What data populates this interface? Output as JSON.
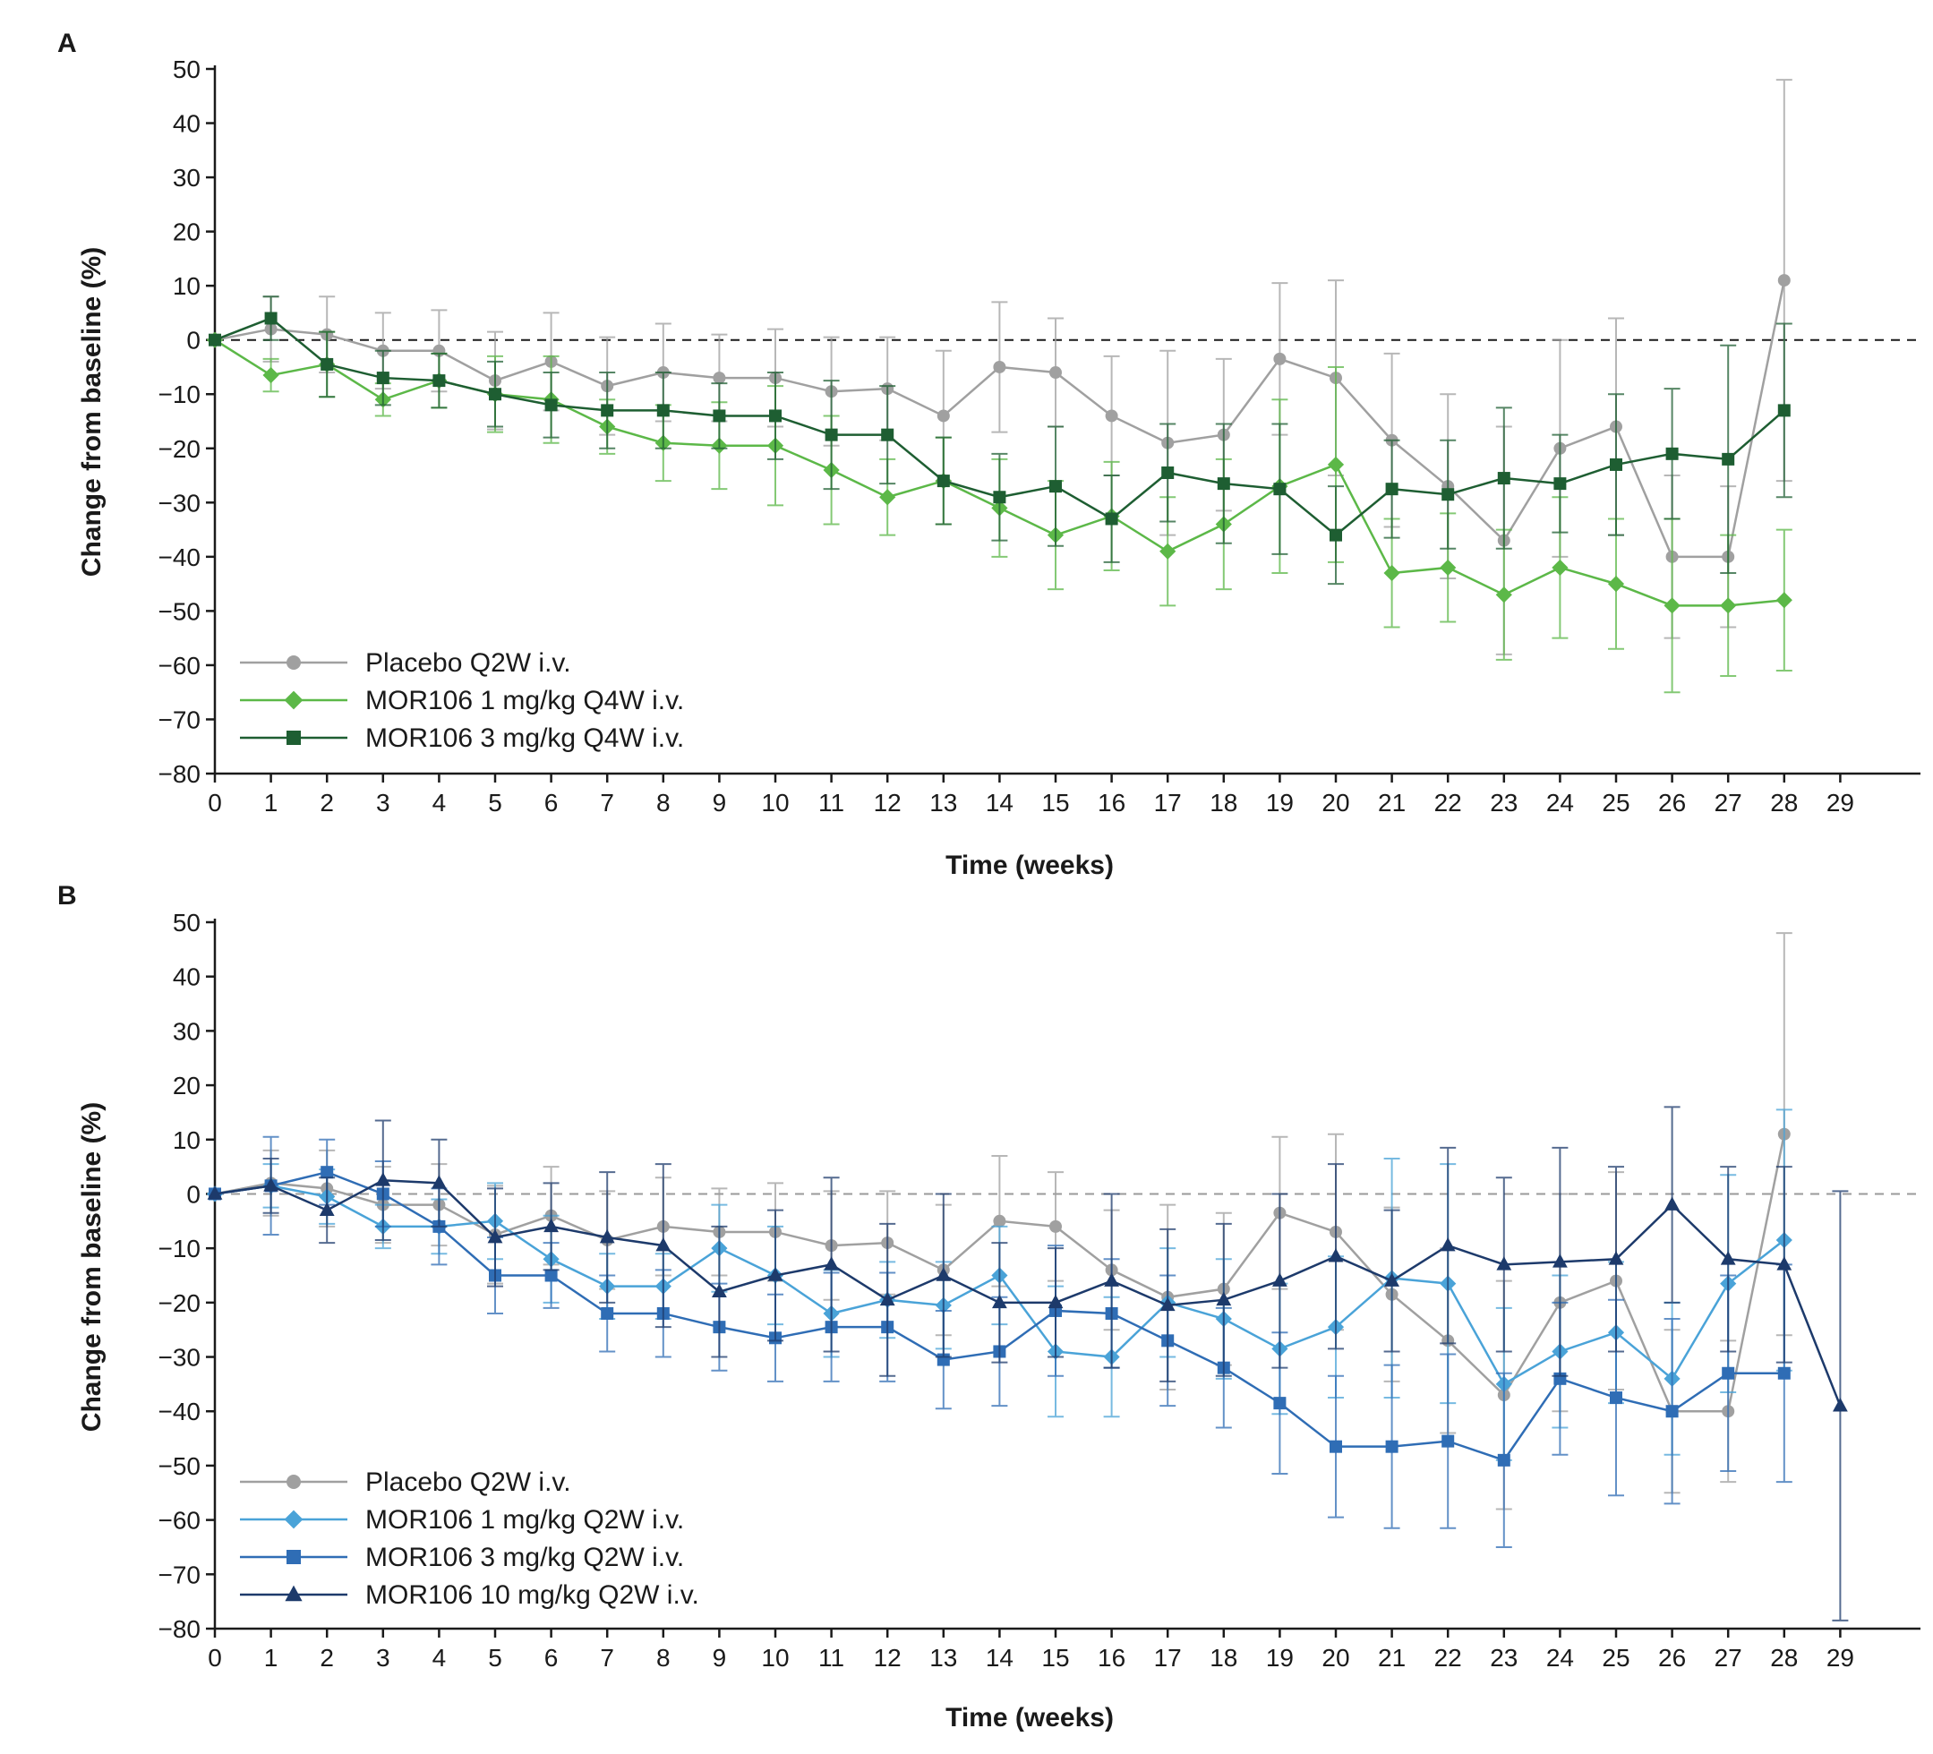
{
  "chart_data": [
    {
      "panel": "A",
      "type": "line",
      "xlabel": "Time (weeks)",
      "ylabel": "Change from baseline (%)",
      "xlim": [
        0,
        29
      ],
      "ylim": [
        -80,
        50
      ],
      "xticks": [
        "0",
        "1",
        "2",
        "3",
        "4",
        "5",
        "6",
        "7",
        "8",
        "9",
        "10",
        "11",
        "12",
        "13",
        "14",
        "15",
        "16",
        "17",
        "18",
        "19",
        "20",
        "21",
        "22",
        "23",
        "24",
        "25",
        "26",
        "27",
        "28",
        "29"
      ],
      "yticks": [
        "50",
        "40",
        "30",
        "20",
        "10",
        "0",
        "−10",
        "−20",
        "−30",
        "−40",
        "−50",
        "−60",
        "−70",
        "−80"
      ],
      "reference_line_y": 0,
      "legend_position": "bottom-left",
      "series": [
        {
          "name": "Placebo Q2W i.v.",
          "color": "#a0a0a0",
          "marker": "circle",
          "x": [
            0,
            1,
            2,
            3,
            4,
            5,
            6,
            7,
            8,
            9,
            10,
            11,
            12,
            13,
            14,
            15,
            16,
            17,
            18,
            19,
            20,
            21,
            22,
            23,
            24,
            25,
            26,
            27,
            28
          ],
          "y": [
            0,
            2,
            1,
            -2,
            -2,
            -7.5,
            -4,
            -8.5,
            -6,
            -7,
            -7,
            -9.5,
            -9,
            -14,
            -5,
            -6,
            -14,
            -19,
            -17.5,
            -3.5,
            -7,
            -18.5,
            -27,
            -37,
            -20,
            -16,
            -40,
            -40,
            11
          ],
          "err": [
            0,
            6,
            7,
            7,
            7.5,
            9,
            9,
            9,
            9,
            8,
            9,
            10,
            9.5,
            12,
            12,
            10,
            11,
            17,
            14,
            14,
            18,
            16,
            17,
            21,
            20,
            20,
            15,
            13,
            37
          ]
        },
        {
          "name": "MOR106 1 mg/kg Q4W i.v.",
          "color": "#5cb848",
          "marker": "diamond",
          "x": [
            0,
            1,
            2,
            3,
            4,
            5,
            6,
            7,
            8,
            9,
            10,
            11,
            12,
            13,
            14,
            15,
            16,
            17,
            18,
            19,
            20,
            21,
            22,
            23,
            24,
            25,
            26,
            27,
            28
          ],
          "y": [
            0,
            -6.5,
            -4.5,
            -11,
            -7.5,
            -10,
            -11,
            -16,
            -19,
            -19.5,
            -19.5,
            -24,
            -29,
            -26,
            -31,
            -36,
            -32.5,
            -39,
            -34,
            -27,
            -23,
            -43,
            -42,
            -47,
            -42,
            -45,
            -49,
            -49,
            -48
          ],
          "err": [
            0,
            3,
            6,
            3,
            5,
            7,
            8,
            5,
            7,
            8,
            11,
            10,
            7,
            8,
            9,
            10,
            10,
            10,
            12,
            16,
            18,
            10,
            10,
            12,
            13,
            12,
            16,
            13,
            13
          ]
        },
        {
          "name": "MOR106 3 mg/kg Q4W i.v.",
          "color": "#1e5e32",
          "marker": "square",
          "x": [
            0,
            1,
            2,
            3,
            4,
            5,
            6,
            7,
            8,
            9,
            10,
            11,
            12,
            13,
            14,
            15,
            16,
            17,
            18,
            19,
            20,
            21,
            22,
            23,
            24,
            25,
            26,
            27,
            28
          ],
          "y": [
            0,
            4,
            -4.5,
            -7,
            -7.5,
            -10,
            -12,
            -13,
            -13,
            -14,
            -14,
            -17.5,
            -17.5,
            -26,
            -29,
            -27,
            -33,
            -24.5,
            -26.5,
            -27.5,
            -36,
            -27.5,
            -28.5,
            -25.5,
            -26.5,
            -23,
            -21,
            -22,
            -13
          ],
          "err": [
            0,
            4,
            6,
            5,
            5,
            6,
            6,
            7,
            7,
            6,
            8,
            10,
            9,
            8,
            8,
            11,
            8,
            9,
            11,
            12,
            9,
            9,
            10,
            13,
            9,
            13,
            12,
            21,
            16
          ]
        }
      ]
    },
    {
      "panel": "B",
      "type": "line",
      "xlabel": "Time (weeks)",
      "ylabel": "Change from baseline (%)",
      "xlim": [
        0,
        29
      ],
      "ylim": [
        -80,
        50
      ],
      "xticks": [
        "0",
        "1",
        "2",
        "3",
        "4",
        "5",
        "6",
        "7",
        "8",
        "9",
        "10",
        "11",
        "12",
        "13",
        "14",
        "15",
        "16",
        "17",
        "18",
        "19",
        "20",
        "21",
        "22",
        "23",
        "24",
        "25",
        "26",
        "27",
        "28",
        "29"
      ],
      "yticks": [
        "50",
        "40",
        "30",
        "20",
        "10",
        "0",
        "−10",
        "−20",
        "−30",
        "−40",
        "−50",
        "−60",
        "−70",
        "−80"
      ],
      "reference_line_y": 0,
      "legend_position": "bottom-left",
      "series": [
        {
          "name": "Placebo Q2W i.v.",
          "color": "#a0a0a0",
          "marker": "circle",
          "x": [
            0,
            1,
            2,
            3,
            4,
            5,
            6,
            7,
            8,
            9,
            10,
            11,
            12,
            13,
            14,
            15,
            16,
            17,
            18,
            19,
            20,
            21,
            22,
            23,
            24,
            25,
            26,
            27,
            28
          ],
          "y": [
            0,
            2,
            1,
            -2,
            -2,
            -7.5,
            -4,
            -8.5,
            -6,
            -7,
            -7,
            -9.5,
            -9,
            -14,
            -5,
            -6,
            -14,
            -19,
            -17.5,
            -3.5,
            -7,
            -18.5,
            -27,
            -37,
            -20,
            -16,
            -40,
            -40,
            11
          ],
          "err": [
            0,
            6,
            7,
            7,
            7.5,
            9,
            9,
            9,
            9,
            8,
            9,
            10,
            9.5,
            12,
            12,
            10,
            11,
            17,
            14,
            14,
            18,
            16,
            17,
            21,
            20,
            20,
            15,
            13,
            37
          ]
        },
        {
          "name": "MOR106 1 mg/kg Q2W i.v.",
          "color": "#4aa3d8",
          "marker": "diamond",
          "x": [
            0,
            1,
            2,
            3,
            4,
            5,
            6,
            7,
            8,
            9,
            10,
            11,
            12,
            13,
            14,
            15,
            16,
            17,
            18,
            19,
            20,
            21,
            22,
            23,
            24,
            25,
            26,
            27,
            28
          ],
          "y": [
            0,
            1.5,
            -0.5,
            -6,
            -6,
            -5,
            -12,
            -17,
            -17,
            -10,
            -15,
            -22,
            -19.5,
            -20.5,
            -15,
            -29,
            -30,
            -20,
            -23,
            -28.5,
            -24.5,
            -15.5,
            -16.5,
            -35,
            -29,
            -25.5,
            -34,
            -16.5,
            -8.5
          ],
          "err": [
            0,
            4,
            5,
            4,
            5,
            7,
            8,
            6,
            6,
            8,
            9,
            8,
            7,
            8,
            9,
            12,
            11,
            10,
            11,
            12,
            13,
            22,
            22,
            14,
            14,
            13,
            14,
            20,
            24
          ]
        },
        {
          "name": "MOR106 3 mg/kg Q2W i.v.",
          "color": "#2f6db5",
          "marker": "square",
          "x": [
            0,
            1,
            2,
            3,
            4,
            5,
            6,
            7,
            8,
            9,
            10,
            11,
            12,
            13,
            14,
            15,
            16,
            17,
            18,
            19,
            20,
            21,
            22,
            23,
            24,
            25,
            26,
            27,
            28
          ],
          "y": [
            0,
            1.5,
            4,
            0,
            -6,
            -15,
            -15,
            -22,
            -22,
            -24.5,
            -26.5,
            -24.5,
            -24.5,
            -30.5,
            -29,
            -21.5,
            -22,
            -27,
            -32,
            -38.5,
            -46.5,
            -46.5,
            -45.5,
            -49,
            -34,
            -37.5,
            -40,
            -33,
            -33
          ],
          "err": [
            0,
            9,
            6,
            6,
            7,
            7,
            6,
            7,
            8,
            8,
            8,
            10,
            10,
            9,
            10,
            12,
            10,
            12,
            11,
            13,
            13,
            15,
            16,
            16,
            14,
            18,
            17,
            18,
            20
          ]
        },
        {
          "name": "MOR106 10 mg/kg Q2W i.v.",
          "color": "#1d3a6b",
          "marker": "triangle",
          "x": [
            0,
            1,
            2,
            3,
            4,
            5,
            6,
            7,
            8,
            9,
            10,
            11,
            12,
            13,
            14,
            15,
            16,
            17,
            18,
            19,
            20,
            21,
            22,
            23,
            24,
            25,
            26,
            27,
            28,
            29
          ],
          "y": [
            0,
            1.5,
            -3,
            2.5,
            2,
            -8,
            -6,
            -8,
            -9.5,
            -18,
            -15,
            -13,
            -19.5,
            -15,
            -20,
            -20,
            -16,
            -20.5,
            -19.5,
            -16,
            -11.5,
            -16,
            -9.5,
            -13,
            -12.5,
            -12,
            -2,
            -12,
            -13,
            -39
          ],
          "err": [
            0,
            5,
            6,
            11,
            8,
            9,
            8,
            12,
            15,
            12,
            12,
            16,
            14,
            15,
            11,
            10,
            16,
            14,
            14,
            16,
            17,
            13,
            18,
            16,
            21,
            17,
            18,
            17,
            18,
            39.5
          ]
        }
      ]
    }
  ]
}
